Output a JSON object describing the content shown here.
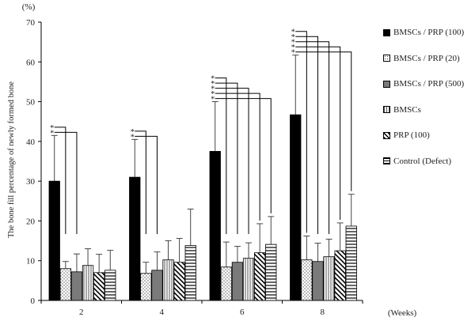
{
  "chart_data": {
    "type": "bar",
    "title": "",
    "xlabel": "(Weeks)",
    "ylabel": "The bone fill percentage of newly formed bone",
    "y_unit": "(%)",
    "ylim": [
      0,
      70
    ],
    "yticks": [
      0,
      10,
      20,
      30,
      40,
      50,
      60,
      70
    ],
    "categories": [
      "2",
      "4",
      "6",
      "8"
    ],
    "series": [
      {
        "name": "BMSCs / PRP (100)",
        "pattern": "solid-black",
        "values": [
          30,
          31,
          37.5,
          46.7
        ],
        "errors": [
          11.5,
          9.5,
          12.5,
          15
        ]
      },
      {
        "name": "BMSCs / PRP (20)",
        "pattern": "dots",
        "values": [
          8,
          6.8,
          8.4,
          10.2
        ],
        "errors": [
          1.8,
          2.8,
          6.3,
          6
        ]
      },
      {
        "name": "BMSCs / PRP (500)",
        "pattern": "solid-gray",
        "values": [
          7.2,
          7.6,
          9.6,
          9.8
        ],
        "errors": [
          4.5,
          4.6,
          4,
          4.6
        ]
      },
      {
        "name": "BMSCs",
        "pattern": "vertical-lines",
        "values": [
          8.8,
          10.2,
          10.6,
          11
        ],
        "errors": [
          4.2,
          4.8,
          3.9,
          4.4
        ]
      },
      {
        "name": "PRP (100)",
        "pattern": "diagonal-lines",
        "values": [
          7,
          9.6,
          12,
          12.5
        ],
        "errors": [
          4.6,
          6,
          7.3,
          7
        ]
      },
      {
        "name": "Control (Defect)",
        "pattern": "horizontal-lines",
        "values": [
          7.6,
          13.8,
          14.1,
          18.7
        ],
        "errors": [
          5,
          9.2,
          7,
          8
        ]
      }
    ],
    "significance": [
      {
        "category": "2",
        "marker": "*",
        "compared_to": [
          "BMSCs / PRP (20)",
          "BMSCs / PRP (500)"
        ]
      },
      {
        "category": "4",
        "marker": "*",
        "compared_to": [
          "BMSCs / PRP (20)",
          "BMSCs / PRP (500)"
        ]
      },
      {
        "category": "6",
        "marker": "*",
        "compared_to": [
          "BMSCs / PRP (20)",
          "BMSCs / PRP (500)",
          "BMSCs",
          "PRP (100)",
          "Control (Defect)"
        ]
      },
      {
        "category": "8",
        "marker": "*",
        "compared_to": [
          "BMSCs / PRP (20)",
          "BMSCs / PRP (500)",
          "BMSCs",
          "PRP (100)",
          "Control (Defect)"
        ]
      }
    ],
    "grid": false,
    "legend_position": "right"
  }
}
